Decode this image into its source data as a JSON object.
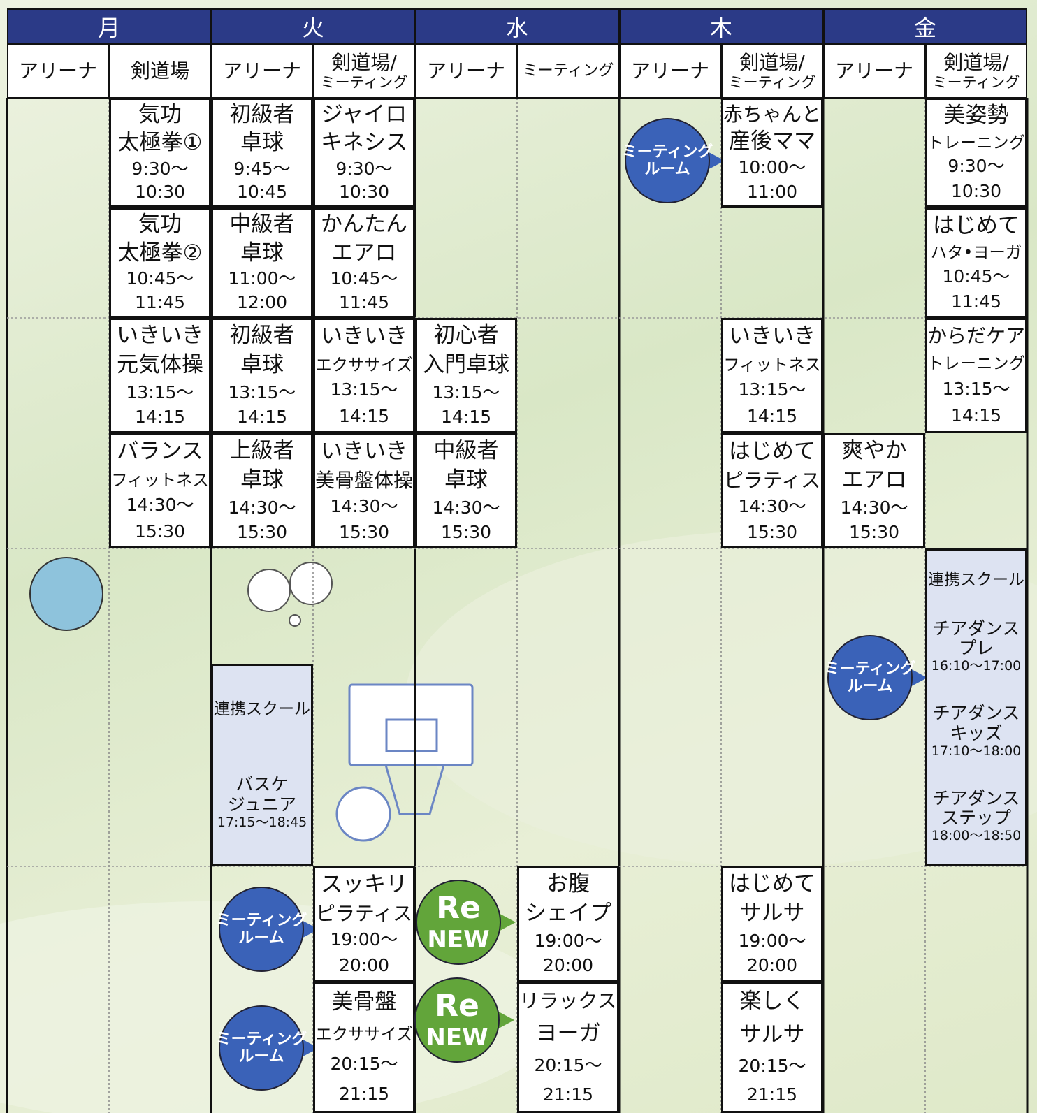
{
  "days": [
    {
      "name": "月",
      "venues": [
        {
          "name": [
            "アリーナ"
          ],
          "sessions": []
        },
        {
          "name": [
            "剣道場"
          ],
          "sessions": [
            {
              "title": [
                "気功",
                "太極拳①"
              ],
              "time": [
                "9:30〜",
                "10:30"
              ]
            },
            {
              "title": [
                "気功",
                "太極拳②"
              ],
              "time": [
                "10:45〜",
                "11:45"
              ]
            },
            {
              "title": [
                "いきいき",
                "元気体操"
              ],
              "time": [
                "13:15〜",
                "14:15"
              ]
            },
            {
              "title": [
                "バランス",
                "フィットネス"
              ],
              "time": [
                "14:30〜",
                "15:30"
              ]
            }
          ]
        }
      ]
    },
    {
      "name": "火",
      "venues": [
        {
          "name": [
            "アリーナ"
          ],
          "sessions": [
            {
              "title": [
                "初級者",
                "卓球"
              ],
              "time": [
                "9:45〜",
                "10:45"
              ]
            },
            {
              "title": [
                "中級者",
                "卓球"
              ],
              "time": [
                "11:00〜",
                "12:00"
              ]
            },
            {
              "title": [
                "初級者",
                "卓球"
              ],
              "time": [
                "13:15〜",
                "14:15"
              ]
            },
            {
              "title": [
                "上級者",
                "卓球"
              ],
              "time": [
                "14:30〜",
                "15:30"
              ]
            }
          ],
          "school": {
            "label": "連携スクール",
            "programs": [
              {
                "title": [
                  "バスケ",
                  "ジュニア"
                ],
                "time": "17:15〜18:45"
              }
            ]
          },
          "badges": [
            {
              "text": [
                "ミーティング",
                "ルーム"
              ],
              "color": "#3a62b8"
            },
            {
              "text": [
                "ミーティング",
                "ルーム"
              ],
              "color": "#3a62b8"
            }
          ]
        },
        {
          "name": [
            "剣道場/",
            "ミーティング"
          ],
          "sessions": [
            {
              "title": [
                "ジャイロ",
                "キネシス"
              ],
              "time": [
                "9:30〜",
                "10:30"
              ]
            },
            {
              "title": [
                "かんたん",
                "エアロ"
              ],
              "time": [
                "10:45〜",
                "11:45"
              ]
            },
            {
              "title": [
                "いきいき",
                "エクササイズ"
              ],
              "time": [
                "13:15〜",
                "14:15"
              ]
            },
            {
              "title": [
                "いきいき",
                "美骨盤体操"
              ],
              "time": [
                "14:30〜",
                "15:30"
              ]
            },
            {
              "title": [
                "スッキリ",
                "ピラティス"
              ],
              "time": [
                "19:00〜",
                "20:00"
              ]
            },
            {
              "title": [
                "美骨盤",
                "エクササイズ"
              ],
              "time": [
                "20:15〜",
                "21:15"
              ]
            }
          ]
        }
      ]
    },
    {
      "name": "水",
      "venues": [
        {
          "name": [
            "アリーナ"
          ],
          "sessions": [
            {
              "title": [
                "初心者",
                "入門卓球"
              ],
              "time": [
                "13:15〜",
                "14:15"
              ]
            },
            {
              "title": [
                "中級者",
                "卓球"
              ],
              "time": [
                "14:30〜",
                "15:30"
              ]
            }
          ],
          "badges": [
            {
              "text": [
                "Re",
                "NEW"
              ],
              "color": "#62a53a"
            },
            {
              "text": [
                "Re",
                "NEW"
              ],
              "color": "#62a53a"
            }
          ]
        },
        {
          "name": [
            "ミーティング"
          ],
          "sessions": [
            {
              "title": [
                "お腹",
                "シェイプ"
              ],
              "time": [
                "19:00〜",
                "20:00"
              ]
            },
            {
              "title": [
                "リラックス",
                "ヨーガ"
              ],
              "time": [
                "20:15〜",
                "21:15"
              ]
            }
          ]
        }
      ]
    },
    {
      "name": "木",
      "venues": [
        {
          "name": [
            "アリーナ"
          ],
          "sessions": [],
          "badges": [
            {
              "text": [
                "ミーティング",
                "ルーム"
              ],
              "color": "#3a62b8"
            }
          ]
        },
        {
          "name": [
            "剣道場/",
            "ミーティング"
          ],
          "sessions": [
            {
              "title": [
                "赤ちゃんと",
                "産後ママ"
              ],
              "time": [
                "10:00〜",
                "11:00"
              ]
            },
            {
              "title": [
                "いきいき",
                "フィットネス"
              ],
              "time": [
                "13:15〜",
                "14:15"
              ]
            },
            {
              "title": [
                "はじめて",
                "ピラティス"
              ],
              "time": [
                "14:30〜",
                "15:30"
              ]
            },
            {
              "title": [
                "はじめて",
                "サルサ"
              ],
              "time": [
                "19:00〜",
                "20:00"
              ]
            },
            {
              "title": [
                "楽しく",
                "サルサ"
              ],
              "time": [
                "20:15〜",
                "21:15"
              ]
            }
          ]
        }
      ]
    },
    {
      "name": "金",
      "venues": [
        {
          "name": [
            "アリーナ"
          ],
          "sessions": [
            {
              "title": [
                "爽やか",
                "エアロ"
              ],
              "time": [
                "14:30〜",
                "15:30"
              ]
            }
          ],
          "badges": [
            {
              "text": [
                "ミーティング",
                "ルーム"
              ],
              "color": "#3a62b8"
            }
          ]
        },
        {
          "name": [
            "剣道場/",
            "ミーティング"
          ],
          "sessions": [
            {
              "title": [
                "美姿勢",
                "トレーニング"
              ],
              "time": [
                "9:30〜",
                "10:30"
              ]
            },
            {
              "title": [
                "はじめて",
                "ハタ•ヨーガ"
              ],
              "time": [
                "10:45〜",
                "11:45"
              ]
            },
            {
              "title": [
                "からだケア",
                "トレーニング"
              ],
              "time": [
                "13:15〜",
                "14:15"
              ]
            }
          ],
          "school": {
            "label": "連携スクール",
            "programs": [
              {
                "title": [
                  "チアダンス",
                  "プレ"
                ],
                "time": "16:10〜17:00"
              },
              {
                "title": [
                  "チアダンス",
                  "キッズ"
                ],
                "time": "17:10〜18:00"
              },
              {
                "title": [
                  "チアダンス",
                  "ステップ"
                ],
                "time": "18:00〜18:50"
              }
            ]
          }
        }
      ]
    }
  ]
}
